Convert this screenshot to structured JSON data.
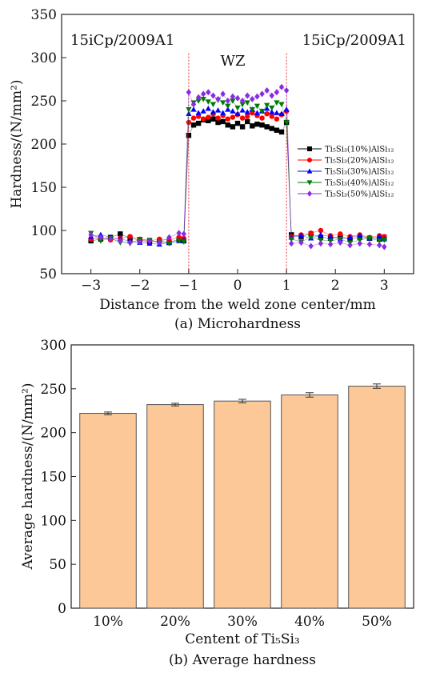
{
  "chart_data": [
    {
      "type": "scatter",
      "caption": "(a) Microhardness",
      "xlabel": "Distance from the weld zone center/mm",
      "ylabel": "Hardness/(N/mm²)",
      "xlim": [
        -3.6,
        3.6
      ],
      "ylim": [
        50,
        350
      ],
      "xticks": [
        "−3",
        "−2",
        "−1",
        "0",
        "1",
        "2",
        "3"
      ],
      "yticks": [
        "50",
        "100",
        "150",
        "200",
        "250",
        "300",
        "350"
      ],
      "annotations": {
        "left": "15iCp/2009A1",
        "right": "15iCp/2009A1",
        "center": "WZ"
      },
      "boundary_lines_x": [
        -1,
        1
      ],
      "legend_position": "center-right",
      "series": [
        {
          "name": "Ti₅Si₃(10%)AlSi₁₂",
          "color": "#000000",
          "marker": "square",
          "x": [
            -3,
            -2.8,
            -2.6,
            -2.4,
            -2.2,
            -2,
            -1.8,
            -1.6,
            -1.4,
            -1.2,
            -1.1,
            -1,
            -0.9,
            -0.8,
            -0.7,
            -0.6,
            -0.5,
            -0.4,
            -0.3,
            -0.2,
            -0.1,
            0,
            0.1,
            0.2,
            0.3,
            0.4,
            0.5,
            0.6,
            0.7,
            0.8,
            0.9,
            1,
            1.1,
            1.3,
            1.5,
            1.7,
            1.9,
            2.1,
            2.3,
            2.5,
            2.7,
            2.9,
            3
          ],
          "y": [
            88,
            90,
            92,
            96,
            91,
            89,
            87,
            88,
            86,
            90,
            88,
            210,
            222,
            224,
            228,
            227,
            229,
            225,
            226,
            222,
            220,
            224,
            220,
            226,
            221,
            223,
            222,
            220,
            218,
            216,
            214,
            225,
            95,
            93,
            96,
            92,
            91,
            93,
            90,
            92,
            91,
            90,
            92
          ]
        },
        {
          "name": "Ti₅Si₃(20%)AlSi₁₂",
          "color": "#ff0000",
          "marker": "circle",
          "x": [
            -3,
            -2.8,
            -2.6,
            -2.4,
            -2.2,
            -2,
            -1.8,
            -1.6,
            -1.4,
            -1.2,
            -1.1,
            -1,
            -0.9,
            -0.8,
            -0.7,
            -0.6,
            -0.5,
            -0.4,
            -0.3,
            -0.2,
            -0.1,
            0,
            0.1,
            0.2,
            0.3,
            0.4,
            0.5,
            0.6,
            0.7,
            0.8,
            0.9,
            1,
            1.1,
            1.3,
            1.5,
            1.7,
            1.9,
            2.1,
            2.3,
            2.5,
            2.7,
            2.9,
            3
          ],
          "y": [
            90,
            92,
            89,
            91,
            93,
            90,
            88,
            90,
            89,
            92,
            91,
            225,
            230,
            232,
            229,
            231,
            235,
            230,
            233,
            229,
            231,
            234,
            230,
            232,
            236,
            233,
            230,
            235,
            232,
            229,
            234,
            238,
            93,
            95,
            97,
            100,
            94,
            96,
            93,
            95,
            92,
            94,
            93
          ]
        },
        {
          "name": "Ti₅Si₃(30%)AlSi₁₂",
          "color": "#0000ff",
          "marker": "triangle-up",
          "x": [
            -3,
            -2.8,
            -2.6,
            -2.4,
            -2.2,
            -2,
            -1.8,
            -1.6,
            -1.4,
            -1.2,
            -1.1,
            -1,
            -0.9,
            -0.8,
            -0.7,
            -0.6,
            -0.5,
            -0.4,
            -0.3,
            -0.2,
            -0.1,
            0,
            0.1,
            0.2,
            0.3,
            0.4,
            0.5,
            0.6,
            0.7,
            0.8,
            0.9,
            1,
            1.1,
            1.3,
            1.5,
            1.7,
            1.9,
            2.1,
            2.3,
            2.5,
            2.7,
            2.9,
            3
          ],
          "y": [
            93,
            95,
            92,
            90,
            88,
            86,
            85,
            84,
            86,
            88,
            89,
            235,
            240,
            236,
            238,
            241,
            237,
            239,
            236,
            240,
            238,
            235,
            239,
            237,
            240,
            236,
            238,
            241,
            237,
            236,
            235,
            240,
            92,
            94,
            91,
            95,
            93,
            90,
            92,
            94,
            91,
            93,
            90
          ]
        },
        {
          "name": "Ti₅Si₃(40%)AlSi₁₂",
          "color": "#007a00",
          "marker": "triangle-down",
          "x": [
            -3,
            -2.8,
            -2.6,
            -2.4,
            -2.2,
            -2,
            -1.8,
            -1.6,
            -1.4,
            -1.2,
            -1.1,
            -1,
            -0.9,
            -0.8,
            -0.7,
            -0.6,
            -0.5,
            -0.4,
            -0.3,
            -0.2,
            -0.1,
            0,
            0.1,
            0.2,
            0.3,
            0.4,
            0.5,
            0.6,
            0.7,
            0.8,
            0.9,
            1,
            1.1,
            1.3,
            1.5,
            1.7,
            1.9,
            2.1,
            2.3,
            2.5,
            2.7,
            2.9,
            3
          ],
          "y": [
            97,
            88,
            91,
            86,
            85,
            90,
            89,
            86,
            85,
            88,
            87,
            240,
            248,
            250,
            252,
            249,
            246,
            251,
            248,
            244,
            250,
            242,
            246,
            248,
            240,
            244,
            238,
            245,
            242,
            248,
            246,
            225,
            90,
            87,
            92,
            89,
            88,
            90,
            86,
            89,
            91,
            88,
            89
          ]
        },
        {
          "name": "Ti₅Si₃(50%)AlSi₁₂",
          "color": "#8a2be2",
          "marker": "diamond",
          "x": [
            -3,
            -2.8,
            -2.6,
            -2.4,
            -2.2,
            -2,
            -1.8,
            -1.6,
            -1.4,
            -1.2,
            -1.1,
            -1,
            -0.9,
            -0.8,
            -0.7,
            -0.6,
            -0.5,
            -0.4,
            -0.3,
            -0.2,
            -0.1,
            0,
            0.1,
            0.2,
            0.3,
            0.4,
            0.5,
            0.6,
            0.7,
            0.8,
            0.9,
            1,
            1.1,
            1.3,
            1.5,
            1.7,
            1.9,
            2.1,
            2.3,
            2.5,
            2.7,
            2.9,
            3
          ],
          "y": [
            95,
            92,
            90,
            88,
            86,
            87,
            88,
            86,
            92,
            97,
            96,
            260,
            246,
            254,
            258,
            260,
            256,
            252,
            258,
            250,
            255,
            253,
            250,
            256,
            252,
            255,
            258,
            262,
            256,
            260,
            266,
            262,
            85,
            86,
            82,
            85,
            84,
            86,
            83,
            85,
            84,
            83,
            81
          ]
        }
      ]
    },
    {
      "type": "bar",
      "caption": "(b) Average hardness",
      "xlabel": "Centent of Ti₅Si₃",
      "ylabel": "Average hardness/(N/mm²)",
      "ylim": [
        0,
        300
      ],
      "yticks": [
        "0",
        "50",
        "100",
        "150",
        "200",
        "250",
        "300"
      ],
      "categories": [
        "10%",
        "20%",
        "30%",
        "40%",
        "50%"
      ],
      "values": [
        222,
        232,
        236,
        243,
        253
      ],
      "errors": [
        1.5,
        1.5,
        2,
        2.5,
        2.5
      ],
      "bar_color": "#fcc898"
    }
  ]
}
